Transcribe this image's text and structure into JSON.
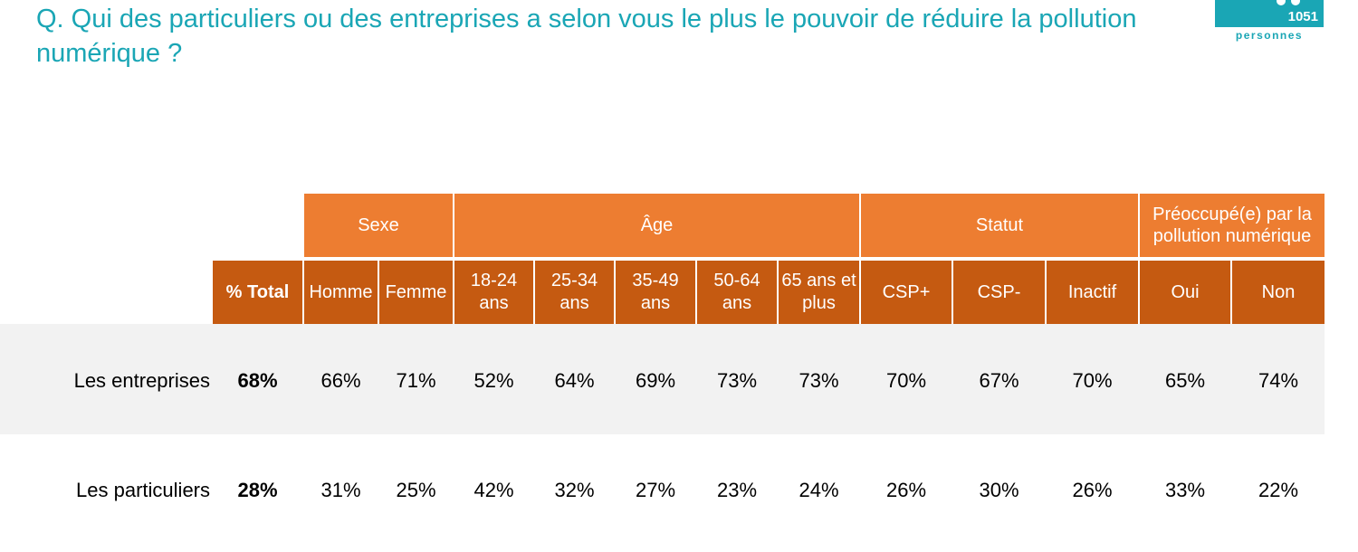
{
  "question": "Q. Qui des particuliers ou des entreprises a selon vous le plus le pouvoir de réduire la pollution numérique ?",
  "sample": {
    "count": "1051",
    "label": "personnes"
  },
  "colors": {
    "title": "#1aa6b5",
    "group_header": "#ed7d31",
    "sub_header": "#c55a11",
    "row_band": "#f2f2f2"
  },
  "groups": [
    "Sexe",
    "Âge",
    "Statut",
    "Préoccupé(e) par la pollution numérique"
  ],
  "columns": [
    "% Total",
    "Homme",
    "Femme",
    "18-24 ans",
    "25-34 ans",
    "35-49 ans",
    "50-64 ans",
    "65 ans et plus",
    "CSP+",
    "CSP-",
    "Inactif",
    "Oui",
    "Non"
  ],
  "rows": [
    {
      "label": "Les entreprises",
      "values": [
        "68%",
        "66%",
        "71%",
        "52%",
        "64%",
        "69%",
        "73%",
        "73%",
        "70%",
        "67%",
        "70%",
        "65%",
        "74%"
      ]
    },
    {
      "label": "Les particuliers",
      "values": [
        "28%",
        "31%",
        "25%",
        "42%",
        "32%",
        "27%",
        "23%",
        "24%",
        "26%",
        "30%",
        "26%",
        "33%",
        "22%"
      ]
    }
  ]
}
